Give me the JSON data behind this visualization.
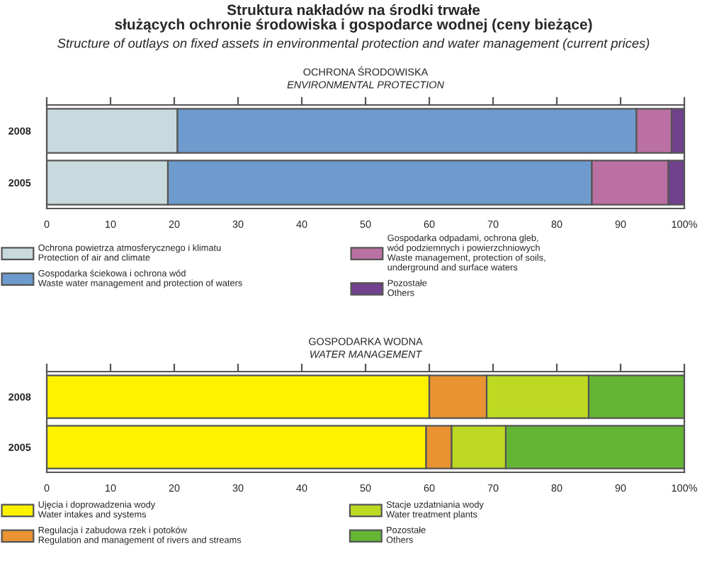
{
  "chart_data": [
    {
      "type": "bar",
      "orientation": "horizontal",
      "stacked": true,
      "title": "Struktura nakładów na środki trwałe\nsłużących ochronie środowiska i gospodarce wodnej (ceny bieżące)",
      "subtitle": "Structure of outlays on fixed assets in environmental protection and water management (current prices)",
      "annotations": [
        "OCHRONA ŚRODOWISKA",
        "ENVIRONMENTAL PROTECTION"
      ],
      "categories": [
        "2008",
        "2005"
      ],
      "series": [
        {
          "name": "Ochrona powietrza atmosferycznego i klimatu\nProtection of air and climate",
          "color": "#c8dadd",
          "values": [
            20.5,
            19
          ]
        },
        {
          "name": "Gospodarka ściekowa i ochrona wód\nWaste water management and protection of waters",
          "color": "#6e9bcd",
          "values": [
            72,
            66.5
          ]
        },
        {
          "name": "Gospodarka odpadami, ochrona gleb,\nwód podziemnych i powierzchniowych\nWaste management, protection of soils,\nunderground and surface waters",
          "color": "#bb70a3",
          "values": [
            5.5,
            12
          ]
        },
        {
          "name": "Pozostałe\nOthers",
          "color": "#70418c",
          "values": [
            2,
            2.5
          ]
        }
      ],
      "xlim": [
        0,
        100
      ],
      "xticks": [
        0,
        10,
        20,
        30,
        40,
        50,
        60,
        70,
        80,
        90,
        {
          "value": 100,
          "label": "100%"
        }
      ],
      "legend": "bottom",
      "grid": false
    },
    {
      "type": "bar",
      "orientation": "horizontal",
      "stacked": true,
      "annotations": [
        "GOSPODARKA WODNA",
        "WATER MANAGEMENT"
      ],
      "categories": [
        "2008",
        "2005"
      ],
      "series": [
        {
          "name": "Ujęcia i doprowadzenia wody\nWater intakes and systems",
          "color": "#fff200",
          "values": [
            60,
            59.5
          ]
        },
        {
          "name": "Regulacja i zabudowa rzek i potoków\nRegulation and management of rivers and streams",
          "color": "#e99332",
          "values": [
            9,
            4
          ]
        },
        {
          "name": "Stacje uzdatniania wody\nWater treatment plants",
          "color": "#bdd922",
          "values": [
            16,
            8.5
          ]
        },
        {
          "name": "Pozostałe\nOthers",
          "color": "#65b535",
          "values": [
            15,
            28
          ]
        }
      ],
      "xlim": [
        0,
        100
      ],
      "xticks": [
        0,
        10,
        20,
        30,
        40,
        50,
        60,
        70,
        80,
        90,
        {
          "value": 100,
          "label": "100%"
        }
      ],
      "legend": "bottom",
      "grid": false
    }
  ]
}
